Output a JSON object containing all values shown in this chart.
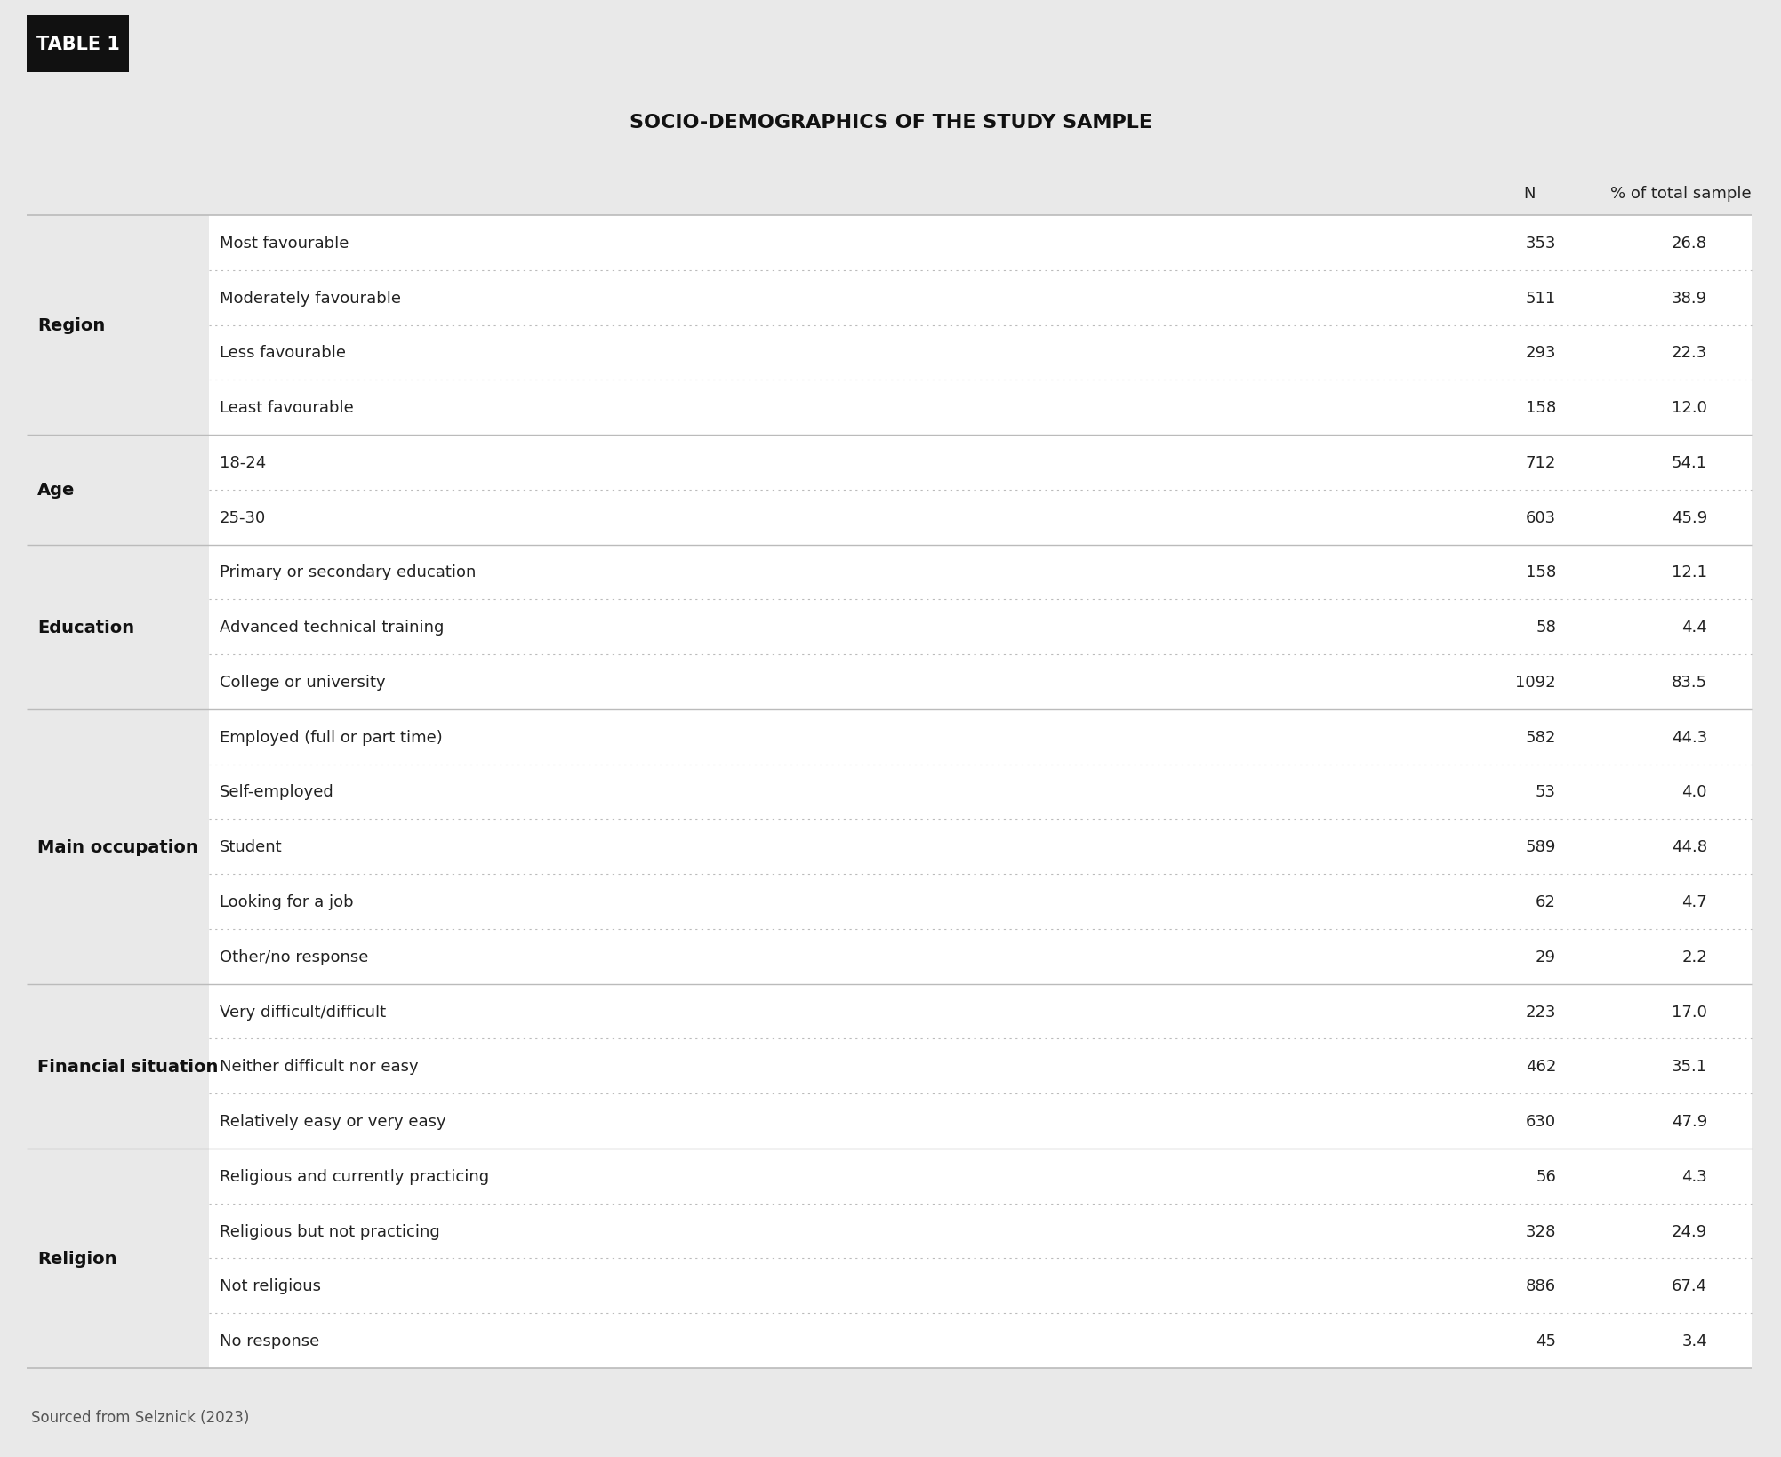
{
  "title": "SOCIO-DEMOGRAPHICS OF THE STUDY SAMPLE",
  "table_label": "TABLE 1",
  "source": "Sourced from Selznick (2023)",
  "sections": [
    {
      "category": "Region",
      "rows": [
        [
          "Most favourable",
          "353",
          "26.8"
        ],
        [
          "Moderately favourable",
          "511",
          "38.9"
        ],
        [
          "Less favourable",
          "293",
          "22.3"
        ],
        [
          "Least favourable",
          "158",
          "12.0"
        ]
      ]
    },
    {
      "category": "Age",
      "rows": [
        [
          "18-24",
          "712",
          "54.1"
        ],
        [
          "25-30",
          "603",
          "45.9"
        ]
      ]
    },
    {
      "category": "Education",
      "rows": [
        [
          "Primary or secondary education",
          "158",
          "12.1"
        ],
        [
          "Advanced technical training",
          "58",
          "4.4"
        ],
        [
          "College or university",
          "1092",
          "83.5"
        ]
      ]
    },
    {
      "category": "Main occupation",
      "rows": [
        [
          "Employed (full or part time)",
          "582",
          "44.3"
        ],
        [
          "Self-employed",
          "53",
          "4.0"
        ],
        [
          "Student",
          "589",
          "44.8"
        ],
        [
          "Looking for a job",
          "62",
          "4.7"
        ],
        [
          "Other/no response",
          "29",
          "2.2"
        ]
      ]
    },
    {
      "category": "Financial situation",
      "rows": [
        [
          "Very difficult/difficult",
          "223",
          "17.0"
        ],
        [
          "Neither difficult nor easy",
          "462",
          "35.1"
        ],
        [
          "Relatively easy or very easy",
          "630",
          "47.9"
        ]
      ]
    },
    {
      "category": "Religion",
      "rows": [
        [
          "Religious and currently practicing",
          "56",
          "4.3"
        ],
        [
          "Religious but not practicing",
          "328",
          "24.9"
        ],
        [
          "Not religious",
          "886",
          "67.4"
        ],
        [
          "No response",
          "45",
          "3.4"
        ]
      ]
    }
  ],
  "bg_color": "#e9e9e9",
  "table_bg": "#ffffff",
  "header_bg": "#111111",
  "header_fg": "#ffffff",
  "data_text_color": "#222222",
  "category_text_color": "#111111",
  "dotted_line_color": "#bbbbbb",
  "title_color": "#111111",
  "source_color": "#555555",
  "border_color": "#bbbbbb",
  "label_fontsize": 15,
  "title_fontsize": 16,
  "header_fontsize": 13,
  "data_fontsize": 13,
  "category_fontsize": 14,
  "source_fontsize": 12
}
